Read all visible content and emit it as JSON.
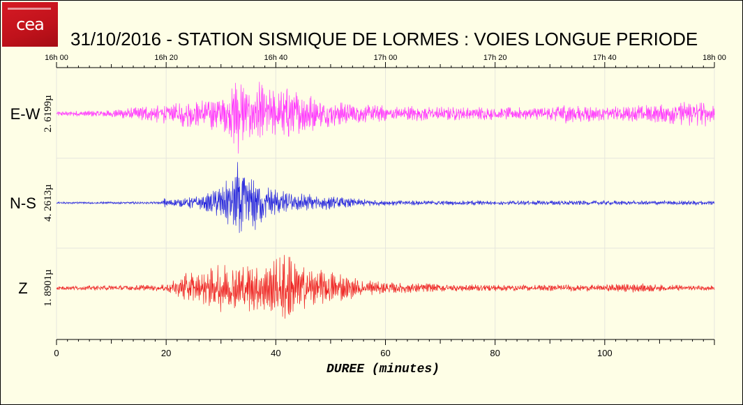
{
  "logo": {
    "text": "cea"
  },
  "page_title": "31/10/2016  -  STATION SISMIQUE DE LORMES : VOIES LONGUE PERIODE",
  "colors": {
    "background": "#fefee6",
    "ew": "#ff33ff",
    "ns": "#2222dd",
    "z": "#ee2222",
    "grid": "#e6e6dd"
  },
  "chart_data": {
    "type": "line",
    "title": "31/10/2016  -  STATION SISMIQUE DE LORMES : VOIES LONGUE PERIODE",
    "xlabel": "DUREE  (minutes)",
    "xlim": [
      0,
      120
    ],
    "x_ticks": [
      "0",
      "20",
      "40",
      "60",
      "80",
      "100"
    ],
    "time_ticks": [
      "16h 00",
      "16h 20",
      "16h 40",
      "17h 00",
      "17h 20",
      "17h 40",
      "18h 00"
    ],
    "grid": true,
    "series": [
      {
        "name": "E-W",
        "scale_label": "2. 6199µ",
        "color": "#ff33ff",
        "x": [
          0,
          10,
          19.8,
          20.5,
          24.3,
          26,
          28,
          30,
          32,
          32.8,
          33.4,
          34,
          35,
          36.5,
          38,
          40,
          42,
          44,
          46,
          50,
          55,
          60,
          70,
          80,
          90,
          93,
          100,
          110,
          118,
          120
        ],
        "amp": [
          0.05,
          0.08,
          0.22,
          0.15,
          0.38,
          0.28,
          0.35,
          0.4,
          0.55,
          1.0,
          0.8,
          0.7,
          0.55,
          0.78,
          0.55,
          0.5,
          0.62,
          0.45,
          0.4,
          0.28,
          0.2,
          0.18,
          0.15,
          0.14,
          0.14,
          0.22,
          0.15,
          0.2,
          0.3,
          0.2
        ]
      },
      {
        "name": "N-S",
        "scale_label": "4. 2613µ",
        "color": "#2222dd",
        "x": [
          0,
          19,
          19.8,
          20.5,
          24,
          26,
          28,
          30,
          31.5,
          32.5,
          33.3,
          34.2,
          35,
          36.5,
          38,
          40.5,
          43,
          46,
          50,
          55,
          60,
          70,
          80,
          90,
          100,
          110,
          120
        ],
        "amp": [
          0.02,
          0.03,
          0.12,
          0.06,
          0.12,
          0.16,
          0.24,
          0.38,
          0.55,
          0.7,
          1.0,
          0.78,
          0.55,
          0.68,
          0.35,
          0.3,
          0.18,
          0.22,
          0.14,
          0.09,
          0.06,
          0.05,
          0.05,
          0.05,
          0.05,
          0.05,
          0.05
        ]
      },
      {
        "name": "Z",
        "scale_label": "1. 8901µ",
        "color": "#ee2222",
        "x": [
          0,
          10,
          19.5,
          20.5,
          24,
          26,
          28,
          30,
          32,
          34,
          36,
          38,
          40,
          42.3,
          44,
          46,
          48,
          52,
          55,
          60,
          70,
          80,
          90,
          100,
          106,
          110,
          120
        ],
        "amp": [
          0.05,
          0.06,
          0.08,
          0.12,
          0.4,
          0.35,
          0.48,
          0.6,
          0.5,
          0.55,
          0.6,
          0.55,
          0.7,
          1.0,
          0.55,
          0.5,
          0.45,
          0.35,
          0.22,
          0.14,
          0.1,
          0.08,
          0.08,
          0.08,
          0.12,
          0.08,
          0.06
        ]
      }
    ]
  }
}
